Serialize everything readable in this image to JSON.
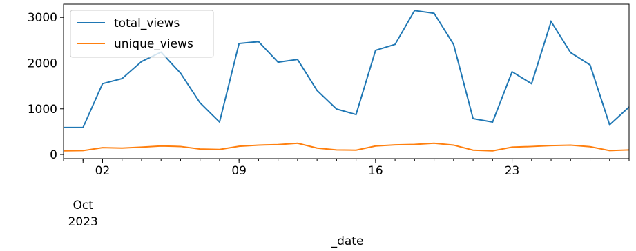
{
  "chart_data": {
    "type": "line",
    "x": [
      "2023-09-30",
      "2023-10-01",
      "2023-10-02",
      "2023-10-03",
      "2023-10-04",
      "2023-10-05",
      "2023-10-06",
      "2023-10-07",
      "2023-10-08",
      "2023-10-09",
      "2023-10-10",
      "2023-10-11",
      "2023-10-12",
      "2023-10-13",
      "2023-10-14",
      "2023-10-15",
      "2023-10-16",
      "2023-10-17",
      "2023-10-18",
      "2023-10-19",
      "2023-10-20",
      "2023-10-21",
      "2023-10-22",
      "2023-10-23",
      "2023-10-24",
      "2023-10-25",
      "2023-10-26",
      "2023-10-27",
      "2023-10-28",
      "2023-10-29"
    ],
    "series": [
      {
        "name": "total_views",
        "color": "#1f77b4",
        "values": [
          590,
          590,
          1550,
          1660,
          2035,
          2240,
          1780,
          1130,
          710,
          2430,
          2470,
          2020,
          2080,
          1400,
          995,
          875,
          2280,
          2410,
          3150,
          3090,
          2410,
          785,
          710,
          1810,
          1550,
          2910,
          2230,
          1960,
          650,
          1040
        ]
      },
      {
        "name": "unique_views",
        "color": "#ff7f0e",
        "values": [
          80,
          85,
          150,
          140,
          160,
          185,
          175,
          120,
          110,
          180,
          205,
          215,
          245,
          140,
          100,
          95,
          185,
          210,
          220,
          245,
          205,
          95,
          80,
          160,
          175,
          195,
          205,
          170,
          85,
          100
        ]
      }
    ],
    "xlabel": "_date",
    "xlim": [
      "2023-09-30",
      "2023-10-29"
    ],
    "xticks": [
      {
        "value": "2023-10-01",
        "label": "Oct\n2023"
      },
      {
        "value": "2023-10-02",
        "label": "02"
      },
      {
        "value": "2023-10-09",
        "label": "09"
      },
      {
        "value": "2023-10-16",
        "label": "16"
      },
      {
        "value": "2023-10-23",
        "label": "23"
      }
    ],
    "ylim": [
      -90,
      3290
    ],
    "yticks": [
      0,
      1000,
      2000,
      3000
    ],
    "legend": "upper left"
  }
}
